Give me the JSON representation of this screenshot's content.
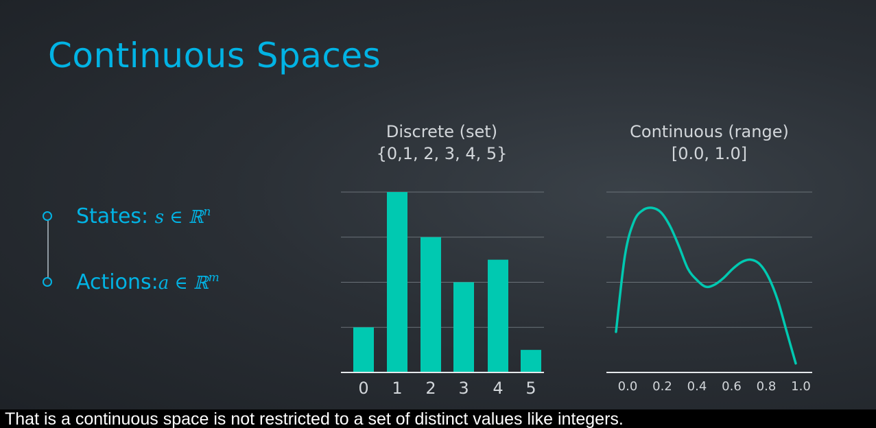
{
  "slide": {
    "title": "Continuous Spaces"
  },
  "bullets": [
    {
      "label": "States:",
      "math": "s ∈ ℝ",
      "sup": "n"
    },
    {
      "label": "Actions:",
      "math": "a ∈ ℝ",
      "sup": "m"
    }
  ],
  "caption": "That is a continuous space is not restricted to a set of distinct values like integers.",
  "colors": {
    "accent": "#02b3e4",
    "chart": "#00c9b1",
    "grid": "#6b7279"
  },
  "chart_data": [
    {
      "type": "bar",
      "title": "Discrete (set)",
      "subtitle": "{0,1, 2, 3, 4, 5}",
      "categories": [
        "0",
        "1",
        "2",
        "3",
        "4",
        "5"
      ],
      "values": [
        1,
        4,
        3,
        2,
        2.5,
        0.5
      ],
      "ylim": [
        0,
        4
      ],
      "grid": true
    },
    {
      "type": "line",
      "title": "Continuous (range)",
      "subtitle": "[0.0, 1.0]",
      "x": [
        0.0,
        0.05,
        0.1,
        0.15,
        0.2,
        0.25,
        0.3,
        0.35,
        0.4,
        0.45,
        0.5,
        0.55,
        0.6,
        0.65,
        0.7,
        0.75,
        0.8,
        0.85,
        0.9,
        0.95,
        1.0
      ],
      "y": [
        0.9,
        2.6,
        3.35,
        3.6,
        3.65,
        3.55,
        3.25,
        2.8,
        2.3,
        2.05,
        1.9,
        1.95,
        2.1,
        2.3,
        2.45,
        2.5,
        2.4,
        2.1,
        1.6,
        0.9,
        0.2
      ],
      "xticks": [
        "0.0",
        "0.2",
        "0.4",
        "0.6",
        "0.8",
        "1.0"
      ],
      "ylim": [
        0,
        4
      ],
      "grid": true
    }
  ]
}
